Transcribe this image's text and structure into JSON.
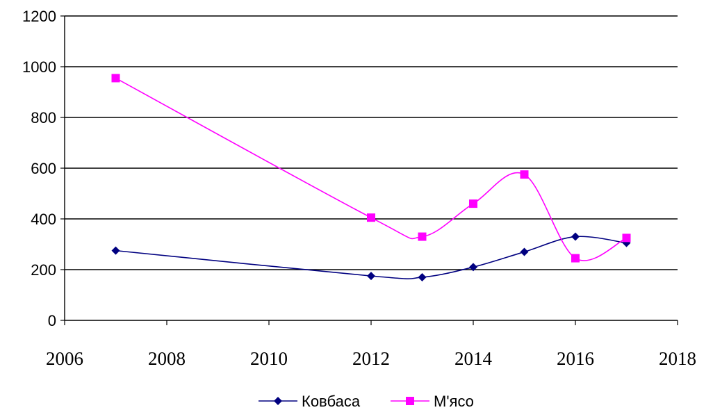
{
  "chart_data": {
    "type": "line",
    "title": "",
    "xlabel": "",
    "ylabel": "",
    "xlim": [
      2006,
      2018
    ],
    "ylim": [
      0,
      1200
    ],
    "x_ticks": [
      "2006",
      "2008",
      "2010",
      "2012",
      "2014",
      "2016",
      "2018"
    ],
    "y_ticks": [
      "0",
      "200",
      "400",
      "600",
      "800",
      "1000",
      "1200"
    ],
    "grid": "horizontal",
    "legend_position": "bottom",
    "series": [
      {
        "name": "Ковбаса",
        "color": "#000080",
        "marker": "diamond",
        "smooth": true,
        "x": [
          2007,
          2012,
          2013,
          2014,
          2015,
          2016,
          2017
        ],
        "y": [
          275,
          175,
          170,
          210,
          270,
          330,
          305
        ]
      },
      {
        "name": "М'ясо",
        "color": "#ff00ff",
        "marker": "square",
        "smooth": true,
        "x": [
          2007,
          2012,
          2013,
          2014,
          2015,
          2016,
          2017
        ],
        "y": [
          955,
          405,
          330,
          460,
          575,
          245,
          325
        ]
      }
    ]
  }
}
